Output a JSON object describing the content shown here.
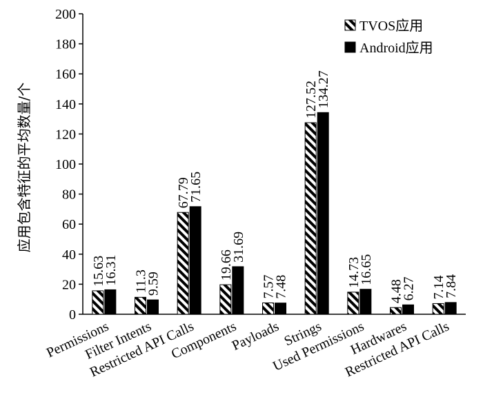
{
  "chart_data": {
    "type": "bar",
    "ylabel": "应用包含特征的平均数量/个",
    "xlabel": "",
    "ylim": [
      0,
      200
    ],
    "yticks": [
      0,
      20,
      40,
      60,
      80,
      100,
      120,
      140,
      160,
      180,
      200
    ],
    "grid": false,
    "legend_position": "top-right",
    "categories": [
      "Permissions",
      "Filter Intents",
      "Restricted API Calls",
      "Components",
      "Payloads",
      "Strings",
      "Used Permissions",
      "Hardwares",
      "Restricted API Calls"
    ],
    "series": [
      {
        "name": "TVOS应用",
        "values": [
          15.63,
          11.3,
          67.79,
          19.66,
          7.57,
          127.52,
          14.73,
          4.48,
          7.14
        ],
        "value_labels": [
          "15.63",
          "11.3",
          "67.79",
          "19.66",
          "7.57",
          "127.52",
          "14.73",
          "4.48",
          "7.14"
        ],
        "fill": "hatch"
      },
      {
        "name": "Android应用",
        "values": [
          16.31,
          9.59,
          71.65,
          31.69,
          7.48,
          134.27,
          16.65,
          6.27,
          7.84
        ],
        "value_labels": [
          "16.31",
          "9.59",
          "71.65",
          "31.69",
          "7.48",
          "134.27",
          "16.65",
          "6.27",
          "7.84"
        ],
        "fill": "#000000"
      }
    ]
  }
}
